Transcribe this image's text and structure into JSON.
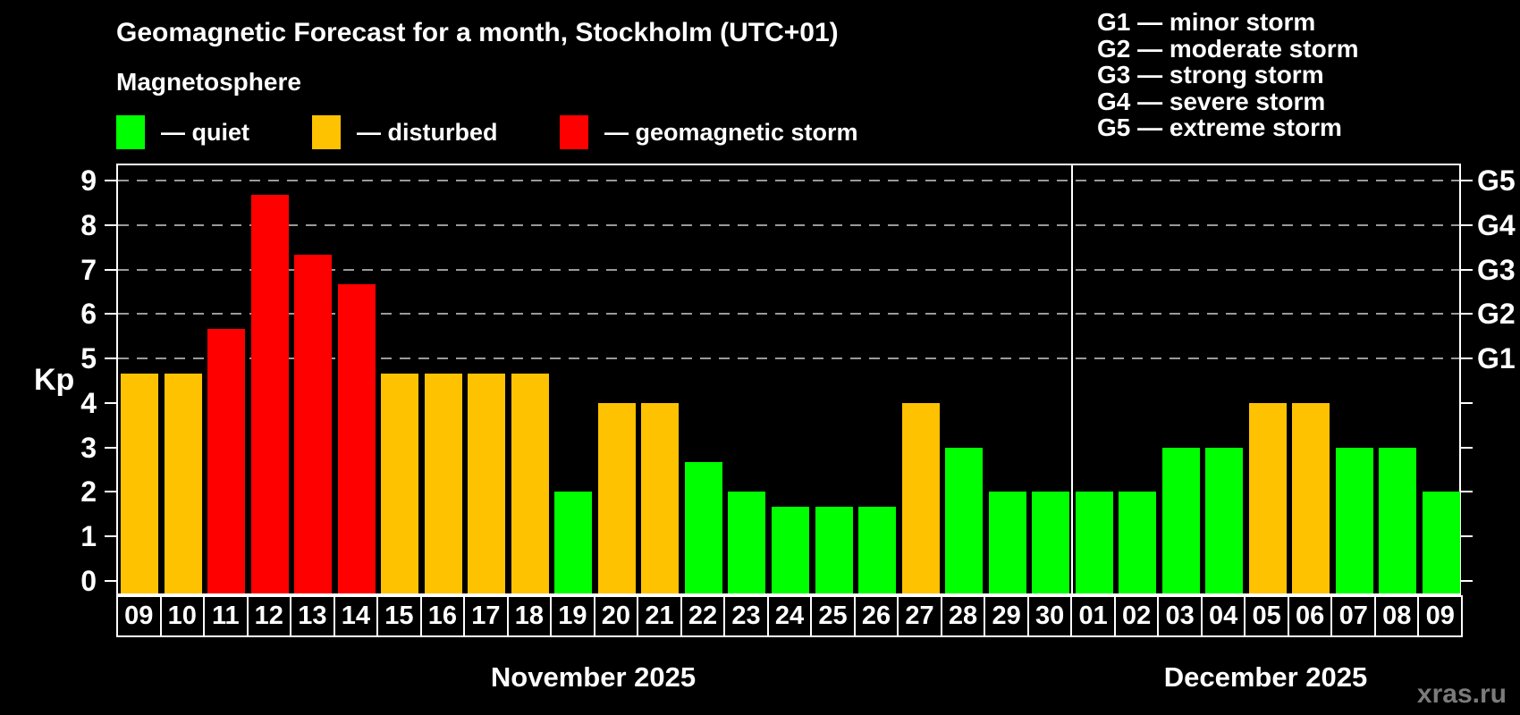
{
  "title": "Geomagnetic Forecast for a month, Stockholm (UTC+01)",
  "subtitle": "Magnetosphere",
  "status_legend": [
    {
      "label": "— quiet",
      "status": "quiet",
      "color": "#00ff00"
    },
    {
      "label": "— disturbed",
      "status": "disturbed",
      "color": "#ffc200"
    },
    {
      "label": "— geomagnetic storm",
      "status": "storm",
      "color": "#ff0000"
    }
  ],
  "storm_scale_legend": [
    "G1 — minor storm",
    "G2 — moderate storm",
    "G3 — strong storm",
    "G4 — severe storm",
    "G5 — extreme storm"
  ],
  "watermark": "xras.ru",
  "chart_data": {
    "type": "bar",
    "title": "Geomagnetic Forecast for a month, Stockholm (UTC+01)",
    "ylabel": "Kp",
    "ylim": [
      0,
      9
    ],
    "y_ticks": [
      0,
      1,
      2,
      3,
      4,
      5,
      6,
      7,
      8,
      9
    ],
    "gridlines_at_kp": [
      5,
      6,
      7,
      8,
      9
    ],
    "grid_style": "dashed",
    "legend_position": "top",
    "right_axis": [
      {
        "kp": 5,
        "label": "G1"
      },
      {
        "kp": 6,
        "label": "G2"
      },
      {
        "kp": 7,
        "label": "G3"
      },
      {
        "kp": 8,
        "label": "G4"
      },
      {
        "kp": 9,
        "label": "G5"
      }
    ],
    "status_colors": {
      "quiet": "#00ff00",
      "disturbed": "#ffc200",
      "storm": "#ff0000"
    },
    "months": [
      {
        "label": "November 2025",
        "days": [
          {
            "day": "09",
            "kp": 4.67,
            "status": "disturbed"
          },
          {
            "day": "10",
            "kp": 4.67,
            "status": "disturbed"
          },
          {
            "day": "11",
            "kp": 5.67,
            "status": "storm"
          },
          {
            "day": "12",
            "kp": 8.67,
            "status": "storm"
          },
          {
            "day": "13",
            "kp": 7.33,
            "status": "storm"
          },
          {
            "day": "14",
            "kp": 6.67,
            "status": "storm"
          },
          {
            "day": "15",
            "kp": 4.67,
            "status": "disturbed"
          },
          {
            "day": "16",
            "kp": 4.67,
            "status": "disturbed"
          },
          {
            "day": "17",
            "kp": 4.67,
            "status": "disturbed"
          },
          {
            "day": "18",
            "kp": 4.67,
            "status": "disturbed"
          },
          {
            "day": "19",
            "kp": 2.0,
            "status": "quiet"
          },
          {
            "day": "20",
            "kp": 4.0,
            "status": "disturbed"
          },
          {
            "day": "21",
            "kp": 4.0,
            "status": "disturbed"
          },
          {
            "day": "22",
            "kp": 2.67,
            "status": "quiet"
          },
          {
            "day": "23",
            "kp": 2.0,
            "status": "quiet"
          },
          {
            "day": "24",
            "kp": 1.67,
            "status": "quiet"
          },
          {
            "day": "25",
            "kp": 1.67,
            "status": "quiet"
          },
          {
            "day": "26",
            "kp": 1.67,
            "status": "quiet"
          },
          {
            "day": "27",
            "kp": 4.0,
            "status": "disturbed"
          },
          {
            "day": "28",
            "kp": 3.0,
            "status": "quiet"
          },
          {
            "day": "29",
            "kp": 2.0,
            "status": "quiet"
          },
          {
            "day": "30",
            "kp": 2.0,
            "status": "quiet"
          }
        ]
      },
      {
        "label": "December 2025",
        "days": [
          {
            "day": "01",
            "kp": 2.0,
            "status": "quiet"
          },
          {
            "day": "02",
            "kp": 2.0,
            "status": "quiet"
          },
          {
            "day": "03",
            "kp": 3.0,
            "status": "quiet"
          },
          {
            "day": "04",
            "kp": 3.0,
            "status": "quiet"
          },
          {
            "day": "05",
            "kp": 4.0,
            "status": "disturbed"
          },
          {
            "day": "06",
            "kp": 4.0,
            "status": "disturbed"
          },
          {
            "day": "07",
            "kp": 3.0,
            "status": "quiet"
          },
          {
            "day": "08",
            "kp": 3.0,
            "status": "quiet"
          },
          {
            "day": "09",
            "kp": 2.0,
            "status": "quiet"
          }
        ]
      }
    ]
  }
}
